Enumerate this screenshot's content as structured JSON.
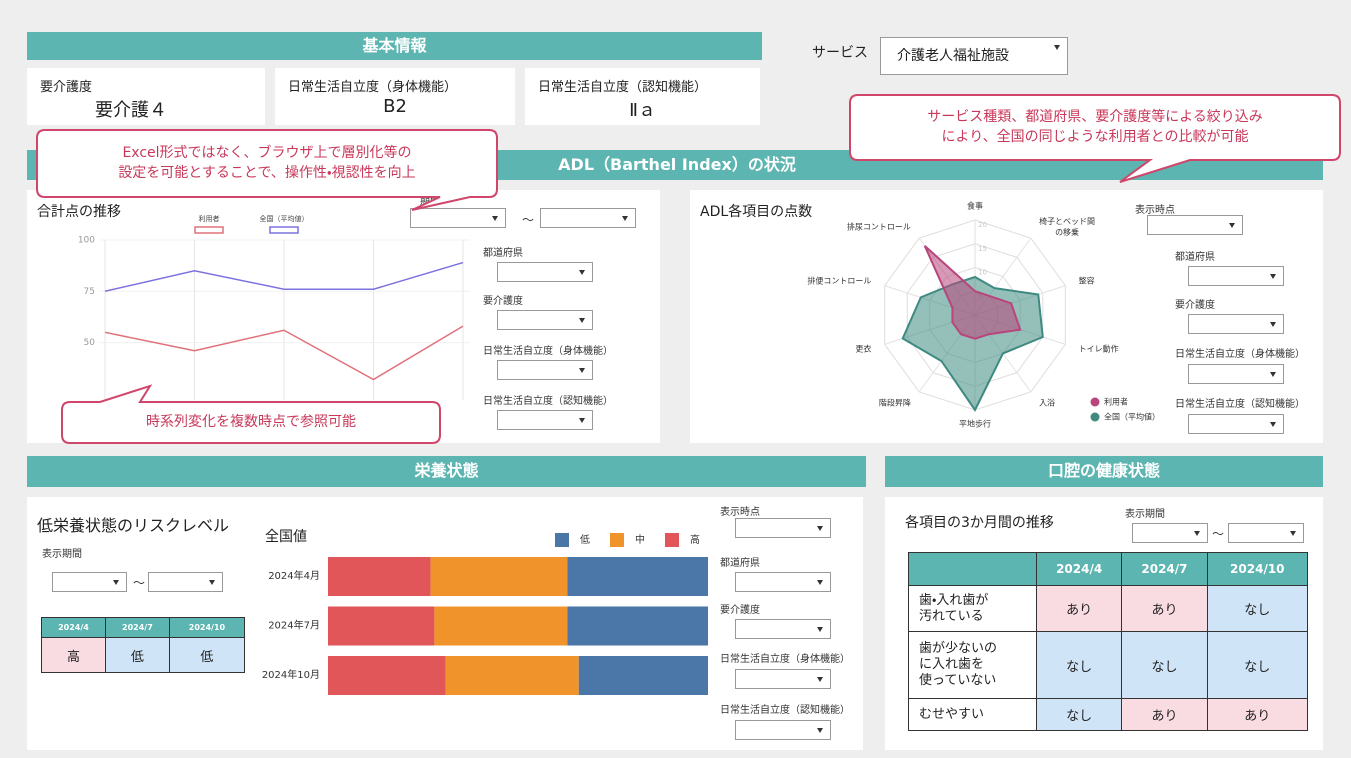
{
  "basic_info": {
    "header": "基本情報",
    "items": [
      {
        "label": "要介護度",
        "value": "要介護４"
      },
      {
        "label": "日常生活自立度（身体機能）",
        "value": "B2"
      },
      {
        "label": "日常生活自立度（認知機能）",
        "value": "Ⅱａ"
      }
    ]
  },
  "service": {
    "label": "サービス",
    "selected": "介護老人福祉施設"
  },
  "callouts": [
    "サービス種類、都道府県、要介護度等による絞り込み\nにより、全国の同じような利用者との比較が可能",
    "Excel形式ではなく、ブラウザ上で層別化等の\n設定を可能とすることで、操作性・視認性を向上",
    "時系列変化を複数時点で参照可能"
  ],
  "adl": {
    "header": "ADL（Barthel Index）の状況",
    "period_label": "期間",
    "period_separator": "～",
    "filters": [
      "都道府県",
      "要介護度",
      "日常生活自立度（身体機能）",
      "日常生活自立度（認知機能）"
    ],
    "time_label": "表示時点",
    "radar_filters": [
      "都道府県",
      "要介護度",
      "日常生活自立度（身体機能）",
      "日常生活自立度（認知機能）"
    ]
  },
  "nutrition": {
    "header": "栄養状態",
    "risk_title": "低栄養状態のリスクレベル",
    "period_label": "表示期間",
    "period_separator": "～",
    "table": {
      "columns": [
        "2024/4",
        "2024/7",
        "2024/10"
      ],
      "values": [
        "高",
        "低",
        "低"
      ],
      "colors": [
        "#f9dbe2",
        "#cfe4f7",
        "#cfe4f7"
      ]
    },
    "time_label": "表示時点",
    "filters": [
      "都道府県",
      "要介護度",
      "日常生活自立度（身体機能）",
      "日常生活自立度（認知機能）"
    ]
  },
  "oral": {
    "header": "口腔の健康状態",
    "title": "各項目の3か月間の推移",
    "period_label": "表示期間",
    "period_separator": "～",
    "table": {
      "columns": [
        "2024/4",
        "2024/7",
        "2024/10"
      ],
      "rows": [
        {
          "label": "歯・入れ歯が\n汚れている",
          "cells": [
            "あり",
            "あり",
            "なし"
          ],
          "colors": [
            "#f9dbe2",
            "#f9dbe2",
            "#cfe4f7"
          ]
        },
        {
          "label": "歯が少ないの\nに入れ歯を\n使っていない",
          "cells": [
            "なし",
            "なし",
            "なし"
          ],
          "colors": [
            "#cfe4f7",
            "#cfe4f7",
            "#cfe4f7"
          ]
        },
        {
          "label": "むせやすい",
          "cells": [
            "なし",
            "あり",
            "あり"
          ],
          "colors": [
            "#cfe4f7",
            "#f9dbe2",
            "#f9dbe2"
          ]
        }
      ]
    }
  },
  "chart_data": [
    {
      "type": "line",
      "title": "合計点の推移",
      "categories": [
        null,
        null,
        null,
        null,
        null
      ],
      "series": [
        {
          "name": "利用者",
          "color": "#e0707a",
          "values": [
            55,
            46,
            56,
            32,
            58
          ]
        },
        {
          "name": "全国（平均値）",
          "color": "#7b72e0",
          "values": [
            75,
            85,
            76,
            76,
            89
          ]
        }
      ],
      "ylim": [
        22,
        100
      ],
      "yticks": [
        50,
        75,
        100
      ],
      "grid": true
    },
    {
      "type": "radar",
      "title": "ADL各項目の点数",
      "categories": [
        "食事",
        "椅子とベッド間\nの移乗",
        "整容",
        "トイレ動作",
        "入浴",
        "平地歩行",
        "階段昇降",
        "更衣",
        "排便コントロール",
        "排尿コントロール"
      ],
      "series": [
        {
          "name": "利用者",
          "color": "#b8457c",
          "values": [
            5,
            5,
            8,
            10,
            5,
            5,
            5,
            5,
            5,
            18
          ]
        },
        {
          "name": "全国（平均値）",
          "color": "#3e8a80",
          "values": [
            8,
            7,
            14,
            15,
            10,
            20,
            12,
            16,
            12,
            8
          ]
        }
      ],
      "rlim": [
        0,
        20
      ],
      "rticks": [
        5,
        10,
        15,
        20
      ]
    },
    {
      "type": "bar",
      "orientation": "horizontal",
      "stacked": true,
      "title": "全国値",
      "categories": [
        "2024年4月",
        "2024年7月",
        "2024年10月"
      ],
      "series": [
        {
          "name": "低",
          "color": "#4a76a8",
          "values": [
            37,
            37,
            34
          ]
        },
        {
          "name": "中",
          "color": "#f0932b",
          "values": [
            36,
            35,
            35
          ]
        },
        {
          "name": "高",
          "color": "#e15759",
          "values": [
            27,
            28,
            31
          ]
        }
      ],
      "xlim": [
        0,
        100
      ]
    }
  ]
}
